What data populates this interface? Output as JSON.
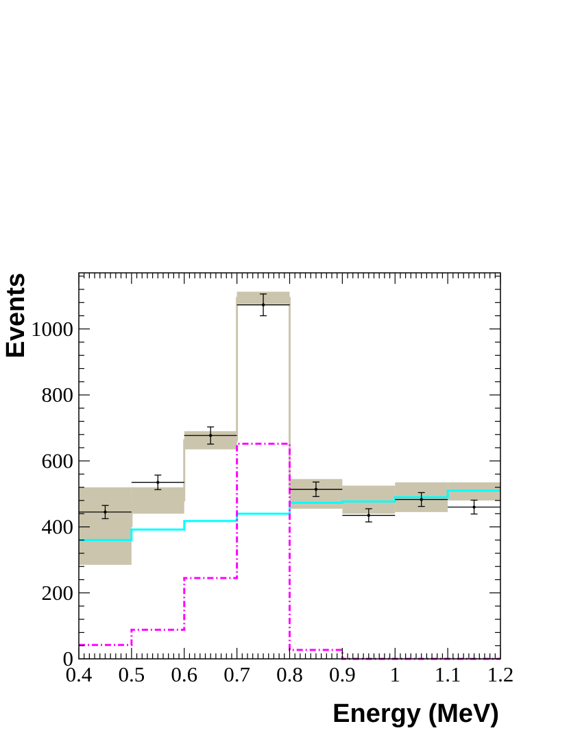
{
  "chart_data": {
    "type": "line",
    "title": "",
    "xlabel": "Energy (MeV)",
    "ylabel": "Events",
    "xlim": [
      0.4,
      1.2
    ],
    "ylim": [
      0,
      1170
    ],
    "x_ticks": [
      "0.4",
      "0.5",
      "0.6",
      "0.7",
      "0.8",
      "0.9",
      "1",
      "1.1",
      "1.2"
    ],
    "y_ticks": [
      "0",
      "200",
      "400",
      "600",
      "800",
      "1000"
    ],
    "bin_edges": [
      0.4,
      0.5,
      0.6,
      0.7,
      0.8,
      0.9,
      1.0,
      1.1,
      1.2
    ],
    "data_points": {
      "x": [
        0.45,
        0.55,
        0.65,
        0.75,
        0.85,
        0.95,
        1.05,
        1.15
      ],
      "y": [
        445,
        535,
        677,
        1073,
        514,
        435,
        483,
        460
      ],
      "y_err": [
        20,
        22,
        26,
        33,
        22,
        20,
        21,
        21
      ]
    },
    "total_band": {
      "low": [
        285,
        440,
        635,
        1075,
        455,
        440,
        445,
        480
      ],
      "high": [
        520,
        520,
        690,
        1113,
        545,
        525,
        535,
        535
      ]
    },
    "series": [
      {
        "values": [
          360,
          392,
          418,
          440,
          473,
          477,
          490,
          510
        ],
        "color": "#00ffff",
        "style": "solid"
      },
      {
        "values": [
          42,
          88,
          245,
          652,
          27,
          0,
          0,
          0
        ],
        "color": "#ff00ff",
        "style": "dash-dot"
      }
    ],
    "band_color": "#cbc5ad",
    "grid": false,
    "legend": "none"
  }
}
